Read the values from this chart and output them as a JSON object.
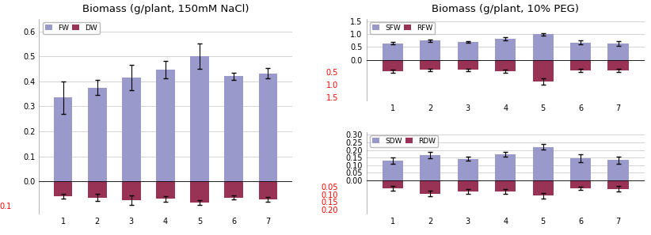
{
  "left_title": "Biomass (g/plant, 150mM NaCl)",
  "right_title": "Biomass (g/plant, 10% PEG)",
  "categories": [
    1,
    2,
    3,
    4,
    5,
    6,
    7
  ],
  "nacl_fw": [
    0.335,
    0.375,
    0.415,
    0.448,
    0.5,
    0.42,
    0.432
  ],
  "nacl_fw_err": [
    0.065,
    0.03,
    0.05,
    0.035,
    0.05,
    0.015,
    0.02
  ],
  "nacl_dw": [
    0.06,
    0.065,
    0.075,
    0.07,
    0.085,
    0.065,
    0.072
  ],
  "nacl_dw_err": [
    0.01,
    0.015,
    0.018,
    0.012,
    0.01,
    0.008,
    0.01
  ],
  "peg_sfw": [
    0.65,
    0.75,
    0.7,
    0.82,
    1.0,
    0.68,
    0.63
  ],
  "peg_sfw_err": [
    0.06,
    0.05,
    0.04,
    0.06,
    0.05,
    0.08,
    0.1
  ],
  "peg_rfw": [
    0.45,
    0.4,
    0.4,
    0.45,
    0.85,
    0.42,
    0.42
  ],
  "peg_rfw_err": [
    0.06,
    0.05,
    0.04,
    0.06,
    0.12,
    0.06,
    0.07
  ],
  "peg_sdw": [
    0.13,
    0.165,
    0.142,
    0.172,
    0.22,
    0.145,
    0.132
  ],
  "peg_sdw_err": [
    0.02,
    0.02,
    0.015,
    0.015,
    0.018,
    0.025,
    0.025
  ],
  "peg_rdw": [
    0.055,
    0.09,
    0.075,
    0.078,
    0.105,
    0.055,
    0.06
  ],
  "peg_rdw_err": [
    0.018,
    0.02,
    0.015,
    0.015,
    0.02,
    0.01,
    0.018
  ],
  "color_blue": "#9999cc",
  "color_darkred": "#993355",
  "title_fontsize": 9.5,
  "tick_fontsize": 7,
  "bar_width": 0.55
}
